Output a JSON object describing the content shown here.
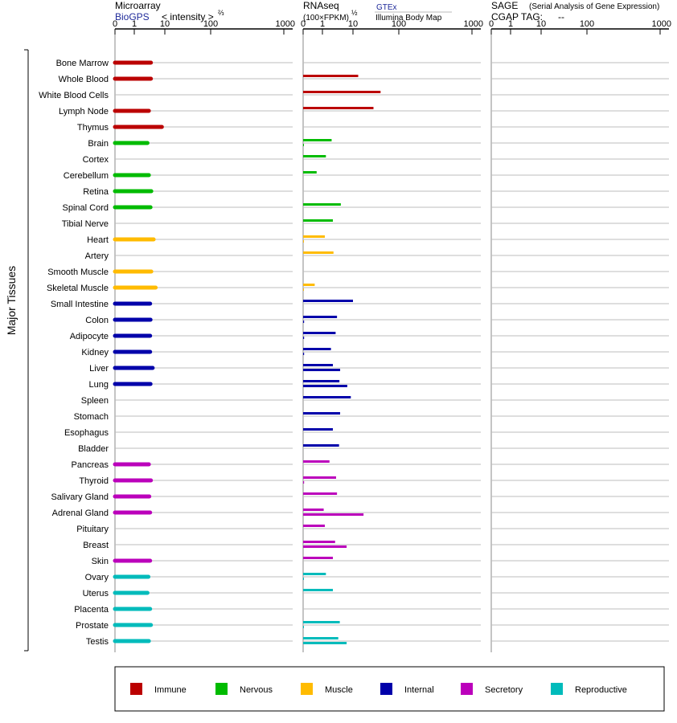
{
  "headers": {
    "microarray": {
      "title": "Microarray",
      "source": "BioGPS",
      "scale_label": "< intensity >",
      "scale_exp": "⅔"
    },
    "rnaseq": {
      "title": "RNAseq",
      "unit": "(100×FPKM)",
      "unit_exp": "½",
      "source1": "GTEx",
      "source2": "Illumina Body Map"
    },
    "sage": {
      "title": "SAGE",
      "subtitle": "(Serial Analysis of Gene Expression)",
      "tag_label": "CGAP  TAG:",
      "tag_value": "--"
    }
  },
  "axis_ticks": [
    "0",
    "1",
    "10",
    "100",
    "1000"
  ],
  "side_label": "Major Tissues",
  "colors": {
    "Immune": "#bb0000",
    "Nervous": "#00bb00",
    "Muscle": "#ffbb00",
    "Internal": "#0000aa",
    "Secretory": "#bb00bb",
    "Reproductive": "#00bbbb"
  },
  "legend": [
    "Immune",
    "Nervous",
    "Muscle",
    "Internal",
    "Secretory",
    "Reproductive"
  ],
  "chart_data": {
    "type": "bar",
    "scale": "power-transformed (0,1,10,100,1000)",
    "categories": [
      "Bone Marrow",
      "Whole Blood",
      "White Blood Cells",
      "Lymph Node",
      "Thymus",
      "Brain",
      "Cortex",
      "Cerebellum",
      "Retina",
      "Spinal Cord",
      "Tibial Nerve",
      "Heart",
      "Artery",
      "Smooth Muscle",
      "Skeletal Muscle",
      "Small Intestine",
      "Colon",
      "Adipocyte",
      "Kidney",
      "Liver",
      "Lung",
      "Spleen",
      "Stomach",
      "Esophagus",
      "Bladder",
      "Pancreas",
      "Thyroid",
      "Salivary Gland",
      "Adrenal Gland",
      "Pituitary",
      "Breast",
      "Skin",
      "Ovary",
      "Uterus",
      "Placenta",
      "Prostate",
      "Testis"
    ],
    "groups": [
      "Immune",
      "Immune",
      "Immune",
      "Immune",
      "Immune",
      "Nervous",
      "Nervous",
      "Nervous",
      "Nervous",
      "Nervous",
      "Nervous",
      "Muscle",
      "Muscle",
      "Muscle",
      "Muscle",
      "Internal",
      "Internal",
      "Internal",
      "Internal",
      "Internal",
      "Internal",
      "Internal",
      "Internal",
      "Internal",
      "Internal",
      "Secretory",
      "Secretory",
      "Secretory",
      "Secretory",
      "Secretory",
      "Secretory",
      "Secretory",
      "Reproductive",
      "Reproductive",
      "Reproductive",
      "Reproductive",
      "Reproductive"
    ],
    "series": [
      {
        "name": "Microarray",
        "values": [
          3.5,
          3.5,
          null,
          3.0,
          8.0,
          2.7,
          null,
          3.0,
          3.6,
          3.4,
          null,
          4.3,
          null,
          3.6,
          5.0,
          3.3,
          3.4,
          3.3,
          3.3,
          4.0,
          3.4,
          null,
          null,
          null,
          null,
          3.0,
          3.5,
          3.1,
          3.3,
          null,
          null,
          3.3,
          2.9,
          2.7,
          3.3,
          3.5,
          3.0
        ]
      },
      {
        "name": "GTEx",
        "values": [
          null,
          13,
          40,
          28,
          null,
          2.0,
          1.3,
          0.7,
          null,
          4.0,
          2.2,
          1.2,
          2.3,
          null,
          0.6,
          10,
          3.0,
          2.7,
          1.9,
          2.2,
          3.6,
          8.5,
          3.8,
          2.2,
          3.5,
          1.7,
          2.8,
          3.0,
          1.1,
          1.2,
          2.6,
          2.2,
          1.3,
          2.2,
          null,
          3.7,
          3.3
        ]
      },
      {
        "name": "Illumina Body Map",
        "values": [
          null,
          null,
          null,
          null,
          null,
          0.01,
          null,
          null,
          null,
          null,
          null,
          0.01,
          null,
          null,
          0.01,
          null,
          0.05,
          0.05,
          0.05,
          3.8,
          6.5,
          null,
          null,
          null,
          null,
          null,
          0.05,
          null,
          17,
          null,
          6.2,
          null,
          0.03,
          null,
          null,
          0.03,
          6.2
        ]
      }
    ]
  }
}
